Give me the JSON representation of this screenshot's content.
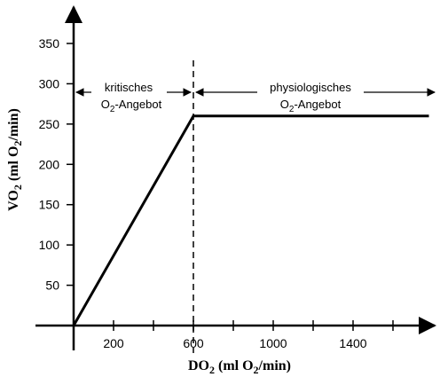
{
  "chart_data": {
    "type": "line",
    "xlabel": {
      "main": "DO",
      "sub1": "2",
      "mid": " (ml O",
      "sub2": "2",
      "end": "/min)"
    },
    "ylabel": {
      "main": "VO",
      "sub1": "2",
      "mid": " (ml O",
      "sub2": "2",
      "end": "/min)"
    },
    "x_ticks": [
      200,
      600,
      1000,
      1400
    ],
    "x_minor_ticks": [
      200,
      400,
      600,
      800,
      1000,
      1200,
      1400,
      1600
    ],
    "y_ticks": [
      50,
      100,
      150,
      200,
      250,
      300,
      350
    ],
    "xlim": [
      0,
      1780
    ],
    "ylim": [
      0,
      380
    ],
    "series": [
      {
        "x": [
          0,
          600,
          1780
        ],
        "y": [
          0,
          260,
          260
        ]
      }
    ],
    "threshold_x": 600,
    "annotations": {
      "critical": {
        "line1": "kritisches",
        "line2_main": "O",
        "line2_sub": "2",
        "line2_end": "-Angebot"
      },
      "physiological": {
        "line1": "physiologisches",
        "line2_main": "O",
        "line2_sub": "2",
        "line2_end": "-Angebot"
      }
    }
  }
}
